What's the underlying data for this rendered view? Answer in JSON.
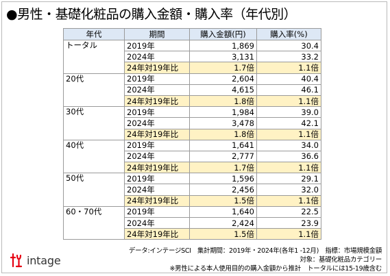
{
  "title": "●男性・基礎化粧品の購入金額・購入率（年代別）",
  "table": {
    "headers": [
      "年代",
      "期間",
      "購入金額(円)",
      "購入率(%)"
    ],
    "groups": [
      {
        "label": "トータル",
        "rows": [
          {
            "period": "2019年",
            "amount": "1,869",
            "rate": "30.4"
          },
          {
            "period": "2024年",
            "amount": "3,131",
            "rate": "33.2"
          },
          {
            "period": "24年対19年比",
            "amount": "1.7倍",
            "rate": "1.1倍",
            "ratio": true
          }
        ]
      },
      {
        "label": "20代",
        "rows": [
          {
            "period": "2019年",
            "amount": "2,604",
            "rate": "40.4"
          },
          {
            "period": "2024年",
            "amount": "4,615",
            "rate": "46.1"
          },
          {
            "period": "24年対19年比",
            "amount": "1.8倍",
            "rate": "1.1倍",
            "ratio": true
          }
        ]
      },
      {
        "label": "30代",
        "rows": [
          {
            "period": "2019年",
            "amount": "1,984",
            "rate": "39.0"
          },
          {
            "period": "2024年",
            "amount": "3,478",
            "rate": "42.1"
          },
          {
            "period": "24年対19年比",
            "amount": "1.8倍",
            "rate": "1.1倍",
            "ratio": true
          }
        ]
      },
      {
        "label": "40代",
        "rows": [
          {
            "period": "2019年",
            "amount": "1,641",
            "rate": "34.0"
          },
          {
            "period": "2024年",
            "amount": "2,777",
            "rate": "36.6"
          },
          {
            "period": "24年対19年比",
            "amount": "1.7倍",
            "rate": "1.1倍",
            "ratio": true
          }
        ]
      },
      {
        "label": "50代",
        "rows": [
          {
            "period": "2019年",
            "amount": "1,596",
            "rate": "29.1"
          },
          {
            "period": "2024年",
            "amount": "2,456",
            "rate": "32.0"
          },
          {
            "period": "24年対19年比",
            "amount": "1.5倍",
            "rate": "1.1倍",
            "ratio": true
          }
        ]
      },
      {
        "label": "60・70代",
        "rows": [
          {
            "period": "2019年",
            "amount": "1,640",
            "rate": "22.5"
          },
          {
            "period": "2024年",
            "amount": "2,424",
            "rate": "23.9"
          },
          {
            "period": "24年対19年比",
            "amount": "1.5倍",
            "rate": "1.1倍",
            "ratio": true
          }
        ]
      }
    ]
  },
  "notes": [
    "データ:インテージSCI　集計期間：2019年・2024年(各年1 -12月)　指標：市場規模金額",
    "対象：基礎化粧品カテゴリー",
    "※男性による本人使用目的の購入金額から推計　トータルには15-19歳含む"
  ],
  "logo": {
    "text": "intage",
    "icon": "intage-logo-mark",
    "color": "#e60012"
  },
  "colors": {
    "header_bg": "#dde8f5",
    "ratio_bg": "#fff2c4",
    "border": "#9a9a9a"
  }
}
